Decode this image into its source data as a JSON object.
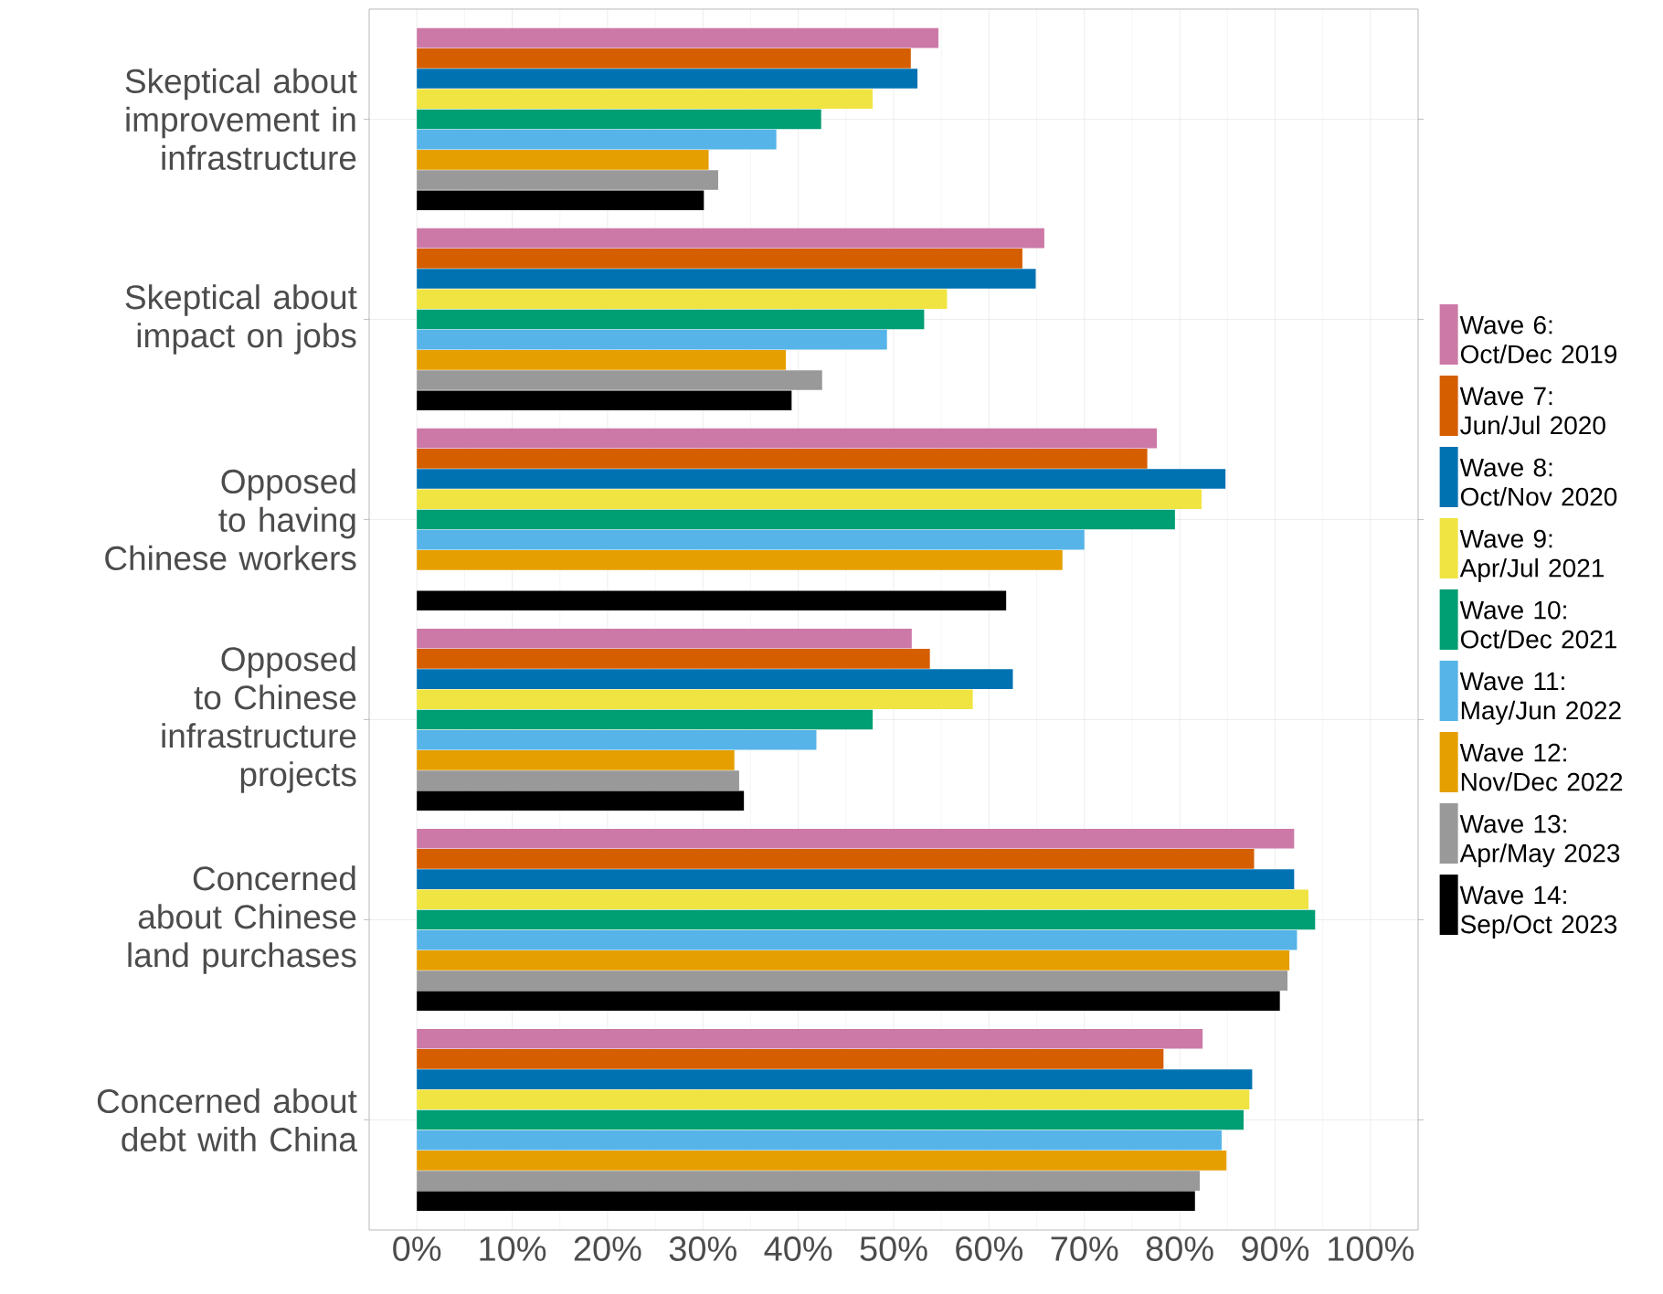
{
  "chart_data": {
    "type": "bar",
    "orientation": "horizontal",
    "categories": [
      "Skeptical about improvement in infrastructure",
      "Skeptical about impact on jobs",
      "Opposed to having Chinese workers",
      "Opposed to Chinese infrastructure projects",
      "Concerned about Chinese land purchases",
      "Concerned about debt with China"
    ],
    "series": [
      {
        "name": "Wave 6: Oct/Dec 2019",
        "color": "#cc79a7",
        "values": [
          54.7,
          65.8,
          77.6,
          51.9,
          92.0,
          82.4
        ]
      },
      {
        "name": "Wave 7: Jun/Jul 2020",
        "color": "#d55e00",
        "values": [
          51.8,
          63.5,
          76.6,
          53.8,
          87.8,
          78.3
        ]
      },
      {
        "name": "Wave 8: Oct/Nov 2020",
        "color": "#0072b2",
        "values": [
          52.5,
          64.9,
          84.8,
          62.5,
          92.0,
          87.6
        ]
      },
      {
        "name": "Wave 9: Apr/Jul 2021",
        "color": "#f0e442",
        "values": [
          47.8,
          55.6,
          82.3,
          58.3,
          93.5,
          87.3
        ]
      },
      {
        "name": "Wave 10: Oct/Dec 2021",
        "color": "#009e73",
        "values": [
          42.4,
          53.2,
          79.5,
          47.8,
          94.2,
          86.7
        ]
      },
      {
        "name": "Wave 11: May/Jun 2022",
        "color": "#56b4e9",
        "values": [
          37.7,
          49.3,
          70.0,
          41.9,
          92.3,
          84.4
        ]
      },
      {
        "name": "Wave 12: Nov/Dec 2022",
        "color": "#e69f00",
        "values": [
          30.6,
          38.7,
          67.7,
          33.3,
          91.5,
          84.9
        ]
      },
      {
        "name": "Wave 13: Apr/May 2023",
        "color": "#999999",
        "values": [
          31.6,
          42.5,
          null,
          33.8,
          91.3,
          82.1
        ]
      },
      {
        "name": "Wave 14: Sep/Oct 2023",
        "color": "#000000",
        "values": [
          30.1,
          39.3,
          61.8,
          34.3,
          90.5,
          81.6
        ]
      }
    ],
    "xlim": [
      -5,
      105
    ],
    "xticks": [
      {
        "value": 0,
        "label": "0%"
      },
      {
        "value": 10,
        "label": "10%"
      },
      {
        "value": 20,
        "label": "20%"
      },
      {
        "value": 30,
        "label": "30%"
      },
      {
        "value": 40,
        "label": "40%"
      },
      {
        "value": 50,
        "label": "50%"
      },
      {
        "value": 60,
        "label": "60%"
      },
      {
        "value": 70,
        "label": "70%"
      },
      {
        "value": 80,
        "label": "80%"
      },
      {
        "value": 90,
        "label": "90%"
      },
      {
        "value": 100,
        "label": "100%"
      }
    ],
    "grid": true,
    "legend": "right"
  }
}
